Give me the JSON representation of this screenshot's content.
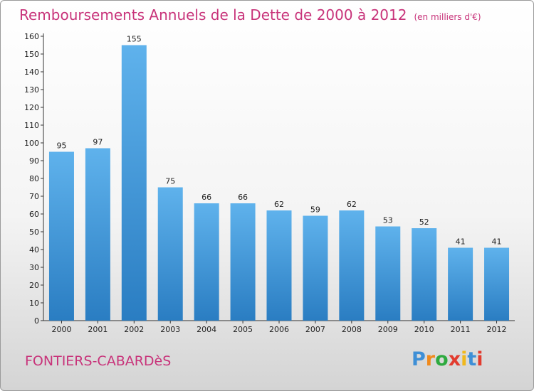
{
  "title": "Remboursements Annuels de la Dette de 2000 à 2012",
  "unit": "(en milliers d'€)",
  "commune": "FONTIERS-CABARDèS",
  "logo": {
    "letters": [
      "P",
      "r",
      "o",
      "x",
      "i",
      "t",
      "i"
    ],
    "colors": [
      "#3e8fd6",
      "#f08a1c",
      "#2eaa3f",
      "#e23b2e",
      "#f0b81c",
      "#3e8fd6",
      "#e23b2e"
    ]
  },
  "colors": {
    "title": "#c8337a",
    "bar_top": "#5fb2ec",
    "bar_bottom": "#2a7dc2"
  },
  "chart_data": {
    "type": "bar",
    "title": "Remboursements Annuels de la Dette de 2000 à 2012",
    "categories": [
      "2000",
      "2001",
      "2002",
      "2003",
      "2004",
      "2005",
      "2006",
      "2007",
      "2008",
      "2009",
      "2010",
      "2011",
      "2012"
    ],
    "values": [
      95,
      97,
      155,
      75,
      66,
      66,
      62,
      59,
      62,
      53,
      52,
      41,
      41
    ],
    "xlabel": "",
    "ylabel": "",
    "ylim": [
      0,
      160
    ],
    "yticks": [
      0,
      10,
      20,
      30,
      40,
      50,
      60,
      70,
      80,
      90,
      100,
      110,
      120,
      130,
      140,
      150,
      160
    ],
    "grid": false,
    "legend": "none"
  }
}
